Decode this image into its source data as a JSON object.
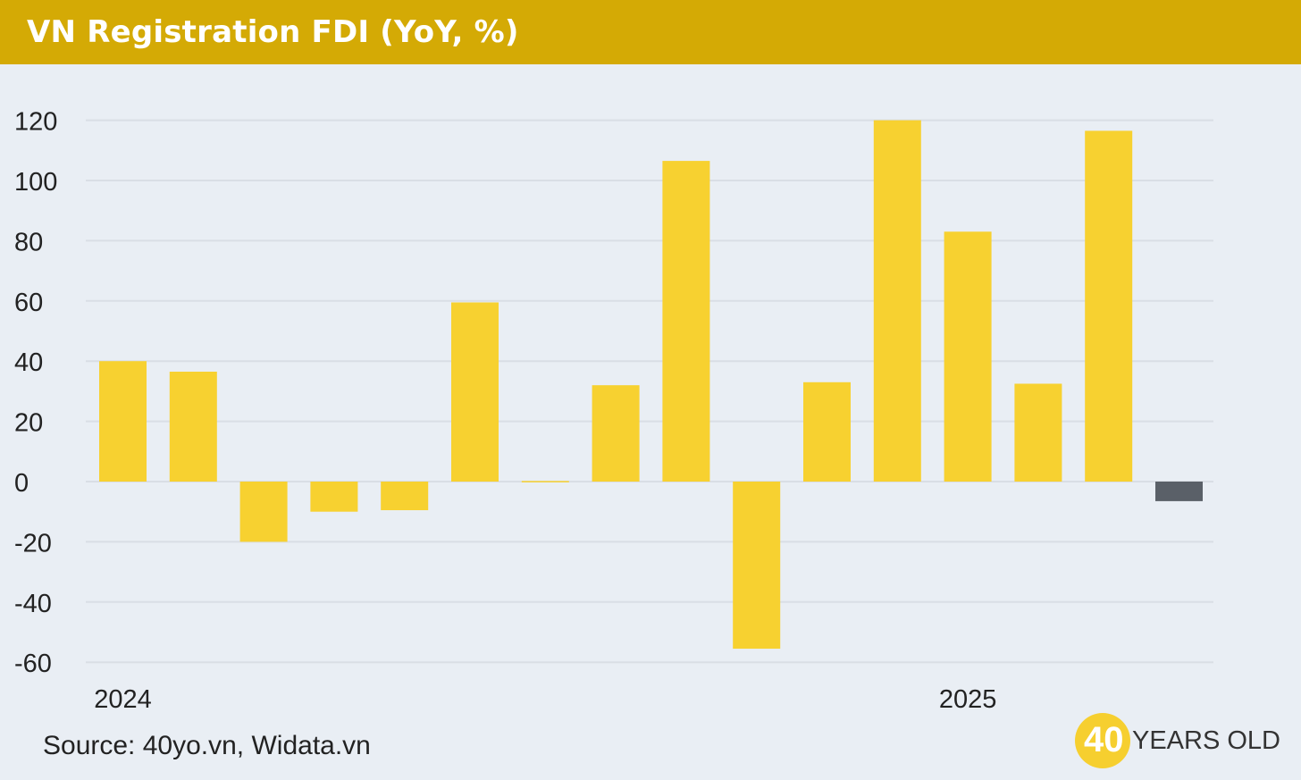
{
  "header": {
    "title": "VN Registration FDI (YoY, %)"
  },
  "footer": {
    "source": "Source: 40yo.vn, Widata.vn"
  },
  "logo": {
    "number": "40",
    "text": "YEARS OLD"
  },
  "colors": {
    "header_bg": "#d4aa05",
    "plot_bg": "#e9eef4",
    "bar": "#f7d130",
    "highlight_bar": "#5a6068",
    "grid": "#d9dee5"
  },
  "chart_data": {
    "type": "bar",
    "title": "VN Registration FDI (YoY, %)",
    "xlabel": "",
    "ylabel": "",
    "ylim": [
      -60,
      120
    ],
    "yticks": [
      120,
      100,
      80,
      60,
      40,
      20,
      0,
      -20,
      -40,
      -60
    ],
    "grid": true,
    "legend": "none",
    "x_tick_labels": [
      {
        "label": "2024",
        "index": 0
      },
      {
        "label": "2025",
        "index": 12
      }
    ],
    "values": [
      40,
      36.5,
      -20,
      -10,
      -9.5,
      59.5,
      0.2,
      32,
      106.5,
      -55.5,
      33,
      120,
      83,
      32.5,
      116.5,
      -6.5
    ],
    "highlight_index": 15
  }
}
